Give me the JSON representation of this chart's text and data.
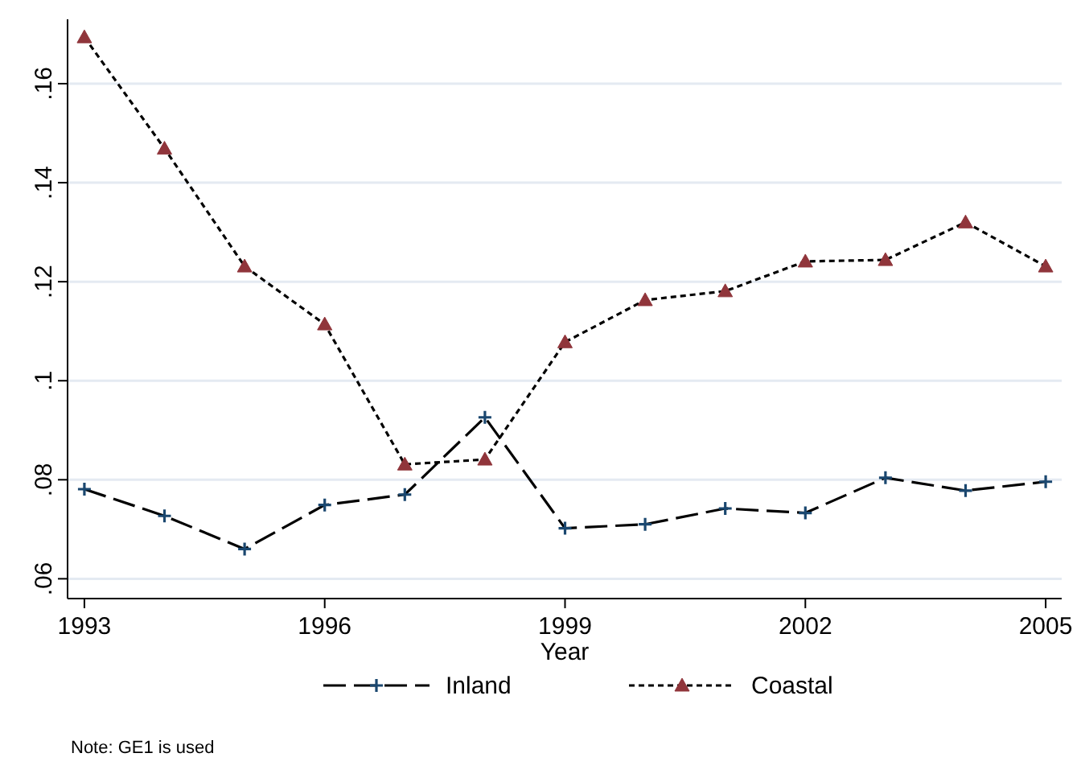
{
  "chart_data": {
    "type": "line",
    "xlabel": "Year",
    "x": [
      1993,
      1994,
      1995,
      1996,
      1997,
      1998,
      1999,
      2000,
      2001,
      2002,
      2003,
      2004,
      2005
    ],
    "series": [
      {
        "name": "Inland",
        "color": "#1a476f",
        "marker": "cross",
        "line_style": "dashed",
        "values": [
          0.0781,
          0.0727,
          0.066,
          0.0749,
          0.077,
          0.0926,
          0.0702,
          0.071,
          0.0742,
          0.0733,
          0.0804,
          0.0778,
          0.0796
        ]
      },
      {
        "name": "Coastal",
        "color": "#90353b",
        "marker": "triangle",
        "line_style": "dotted",
        "values": [
          0.1694,
          0.1469,
          0.1231,
          0.1114,
          0.0831,
          0.0841,
          0.1078,
          0.1163,
          0.1181,
          0.1241,
          0.1244,
          0.132,
          0.1231
        ]
      }
    ],
    "xlim": [
      1992.79,
      2005.2
    ],
    "xticks": [
      1993,
      1996,
      1999,
      2002,
      2005
    ],
    "ylim": [
      0.056,
      0.173
    ],
    "yticks": [
      {
        "value": 0.06,
        "label": ".06"
      },
      {
        "value": 0.08,
        "label": ".08"
      },
      {
        "value": 0.1,
        "label": ".1"
      },
      {
        "value": 0.12,
        "label": ".12"
      },
      {
        "value": 0.14,
        "label": ".14"
      },
      {
        "value": 0.16,
        "label": ".16"
      }
    ],
    "grid": "y",
    "legend": "bottom",
    "annotations": [
      "Note: GE1 is used"
    ]
  }
}
